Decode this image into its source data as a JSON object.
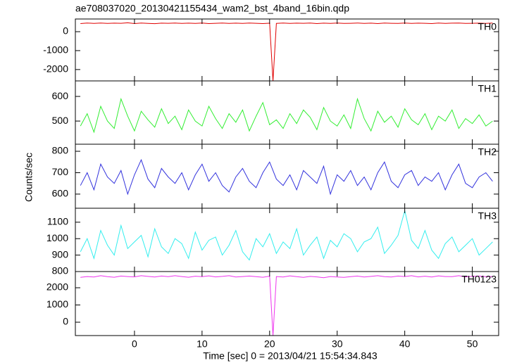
{
  "title": "ae708037020_20130421155434_wam2_bst_4band_16bin.qdp",
  "ylabel": "Counts/sec",
  "xlabel": "Time [sec] 0 = 2013/04/21 15:54:34.843",
  "chart_data": [
    {
      "type": "line",
      "label": "TH0",
      "color": "#e00000",
      "xlim": [
        -8.75,
        53.9
      ],
      "ylim": [
        -2600,
        670
      ],
      "yticks": [
        0,
        -1000,
        -2000
      ],
      "x": [
        -8,
        -7,
        -6,
        -5,
        -4,
        -3,
        -2,
        -1,
        0,
        1,
        2,
        3,
        4,
        5,
        6,
        7,
        8,
        9,
        10,
        11,
        12,
        13,
        14,
        15,
        16,
        17,
        18,
        19,
        20,
        20.5,
        21,
        22,
        23,
        24,
        25,
        26,
        27,
        28,
        29,
        30,
        31,
        32,
        33,
        34,
        35,
        36,
        37,
        38,
        39,
        40,
        41,
        42,
        43,
        44,
        45,
        46,
        47,
        48,
        49,
        50,
        51,
        52,
        53
      ],
      "values": [
        430,
        455,
        440,
        460,
        435,
        450,
        445,
        470,
        430,
        455,
        440,
        425,
        450,
        445,
        460,
        435,
        450,
        440,
        455,
        430,
        445,
        460,
        440,
        450,
        435,
        455,
        445,
        430,
        450,
        -2600,
        440,
        455,
        435,
        450,
        445,
        460,
        430,
        450,
        440,
        455,
        435,
        445,
        460,
        440,
        450,
        430,
        455,
        445,
        440,
        460,
        435,
        450,
        445,
        430,
        455,
        440,
        450,
        460,
        435,
        445,
        450,
        440,
        455
      ]
    },
    {
      "type": "line",
      "label": "TH1",
      "color": "#33ee33",
      "xlim": [
        -8.75,
        53.9
      ],
      "ylim": [
        406,
        663
      ],
      "yticks": [
        600,
        500
      ],
      "x": [
        -8,
        -7,
        -6,
        -5,
        -4,
        -3,
        -2,
        -1,
        0,
        1,
        2,
        3,
        4,
        5,
        6,
        7,
        8,
        9,
        10,
        11,
        12,
        13,
        14,
        15,
        16,
        17,
        18,
        19,
        20,
        21,
        22,
        23,
        24,
        25,
        26,
        27,
        28,
        29,
        30,
        31,
        32,
        33,
        34,
        35,
        36,
        37,
        38,
        39,
        40,
        41,
        42,
        43,
        44,
        45,
        46,
        47,
        48,
        49,
        50,
        51,
        52,
        53
      ],
      "values": [
        480,
        530,
        455,
        560,
        500,
        470,
        590,
        520,
        460,
        540,
        505,
        475,
        550,
        490,
        520,
        465,
        545,
        500,
        480,
        560,
        510,
        470,
        530,
        495,
        545,
        460,
        520,
        575,
        485,
        505,
        470,
        530,
        490,
        545,
        515,
        465,
        555,
        500,
        480,
        525,
        470,
        590,
        510,
        460,
        540,
        495,
        520,
        475,
        550,
        505,
        485,
        530,
        465,
        520,
        500,
        545,
        470,
        510,
        490,
        525,
        480,
        500
      ]
    },
    {
      "type": "line",
      "label": "TH2",
      "color": "#3333dd",
      "xlim": [
        -8.75,
        53.9
      ],
      "ylim": [
        534,
        833
      ],
      "yticks": [
        800,
        700,
        600
      ],
      "x": [
        -8,
        -7,
        -6,
        -5,
        -4,
        -3,
        -2,
        -1,
        0,
        1,
        2,
        3,
        4,
        5,
        6,
        7,
        8,
        9,
        10,
        11,
        12,
        13,
        14,
        15,
        16,
        17,
        18,
        19,
        20,
        21,
        22,
        23,
        24,
        25,
        26,
        27,
        28,
        29,
        30,
        31,
        32,
        33,
        34,
        35,
        36,
        37,
        38,
        39,
        40,
        41,
        42,
        43,
        44,
        45,
        46,
        47,
        48,
        49,
        50,
        51,
        52,
        53
      ],
      "values": [
        640,
        700,
        620,
        740,
        680,
        650,
        710,
        600,
        690,
        760,
        670,
        630,
        720,
        680,
        650,
        700,
        620,
        690,
        740,
        660,
        700,
        640,
        610,
        680,
        720,
        660,
        630,
        700,
        750,
        670,
        640,
        690,
        620,
        710,
        680,
        650,
        730,
        600,
        690,
        660,
        710,
        640,
        680,
        620,
        700,
        750,
        660,
        630,
        690,
        710,
        640,
        680,
        660,
        700,
        620,
        690,
        740,
        650,
        630,
        680,
        700,
        660
      ]
    },
    {
      "type": "line",
      "label": "TH3",
      "color": "#33eeee",
      "xlim": [
        -8.75,
        53.9
      ],
      "ylim": [
        800,
        1185
      ],
      "yticks": [
        1100,
        1000,
        900,
        800
      ],
      "x": [
        -8,
        -7,
        -6,
        -5,
        -4,
        -3,
        -2,
        -1,
        0,
        1,
        2,
        3,
        4,
        5,
        6,
        7,
        8,
        9,
        10,
        11,
        12,
        13,
        14,
        15,
        16,
        17,
        18,
        19,
        20,
        21,
        22,
        23,
        24,
        25,
        26,
        27,
        28,
        29,
        30,
        31,
        32,
        33,
        34,
        35,
        36,
        37,
        38,
        39,
        40,
        41,
        42,
        43,
        44,
        45,
        46,
        47,
        48,
        49,
        50,
        51,
        52,
        53
      ],
      "values": [
        920,
        1000,
        880,
        1050,
        960,
        900,
        1080,
        940,
        980,
        1020,
        890,
        1060,
        950,
        910,
        1000,
        970,
        880,
        1040,
        930,
        990,
        1010,
        900,
        960,
        1050,
        920,
        870,
        1000,
        950,
        1030,
        910,
        980,
        940,
        1060,
        900,
        960,
        1010,
        880,
        990,
        950,
        1030,
        1000,
        920,
        980,
        1000,
        1070,
        910,
        960,
        1020,
        1170,
        990,
        940,
        1050,
        930,
        880,
        970,
        1010,
        920,
        960,
        1000,
        900,
        940,
        980
      ]
    },
    {
      "type": "line",
      "label": "TH0123",
      "color": "#ee33ee",
      "xlim": [
        -8.75,
        53.9
      ],
      "ylim": [
        -775,
        2940
      ],
      "yticks": [
        2000,
        1000,
        0
      ],
      "xticks": [
        0,
        10,
        20,
        30,
        40,
        50
      ],
      "x": [
        -8,
        -7,
        -6,
        -5,
        -4,
        -3,
        -2,
        -1,
        0,
        1,
        2,
        3,
        4,
        5,
        6,
        7,
        8,
        9,
        10,
        11,
        12,
        13,
        14,
        15,
        16,
        17,
        18,
        19,
        20,
        20.5,
        21,
        22,
        23,
        24,
        25,
        26,
        27,
        28,
        29,
        30,
        31,
        32,
        33,
        34,
        35,
        36,
        37,
        38,
        39,
        40,
        41,
        42,
        43,
        44,
        45,
        46,
        47,
        48,
        49,
        50,
        51,
        52,
        53
      ],
      "values": [
        2600,
        2650,
        2620,
        2700,
        2640,
        2610,
        2680,
        2650,
        2630,
        2700,
        2660,
        2620,
        2680,
        2640,
        2700,
        2650,
        2610,
        2670,
        2640,
        2690,
        2630,
        2660,
        2700,
        2620,
        2650,
        2680,
        2640,
        2610,
        2670,
        -775,
        2650,
        2620,
        2690,
        2640,
        2600,
        2660,
        2630,
        2580,
        2650,
        2620,
        2600,
        2640,
        2680,
        2620,
        2660,
        2700,
        2640,
        2620,
        2680,
        2650,
        2700,
        2630,
        2670,
        2620,
        2690,
        2650,
        2640,
        2700,
        2630,
        2660,
        2680,
        2640,
        2650
      ]
    }
  ]
}
